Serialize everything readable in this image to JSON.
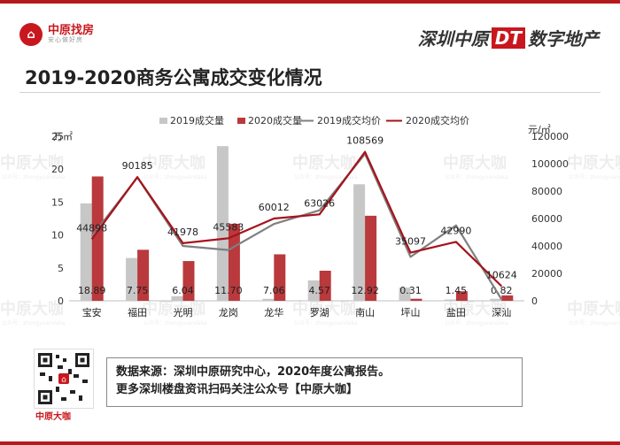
{
  "header": {
    "logo_icon": "house-logo-icon",
    "logo_name": "中原找房",
    "logo_slogan": "安心做好房",
    "brand_prefix": "深圳中原",
    "brand_dt": "DT",
    "brand_suffix": "数字地产"
  },
  "watermark": {
    "text": "中原大咖",
    "sub": "公众号：zhongyuandaka"
  },
  "colors": {
    "accent": "#c8171e",
    "bar2019": "#c7c7c7",
    "bar2020": "#b9393c",
    "line2019": "#7f7f7f",
    "line2020": "#a6121b"
  },
  "chart_data": {
    "type": "bar",
    "title": "2019-2020商务公寓成交变化情况",
    "categories": [
      "宝安",
      "福田",
      "光明",
      "龙岗",
      "龙华",
      "罗湖",
      "南山",
      "坪山",
      "盐田",
      "深汕"
    ],
    "ylabel_left": "万㎡",
    "ylabel_right": "元/㎡",
    "ylim_left": [
      0,
      25
    ],
    "ylim_right": [
      0,
      120000
    ],
    "yticks_left": [
      "0",
      "5",
      "10",
      "15",
      "20",
      "25"
    ],
    "yticks_right": [
      "0",
      "20000",
      "40000",
      "60000",
      "80000",
      "100000",
      "120000"
    ],
    "legend": [
      "2019成交量",
      "2020成交量",
      "2019成交均价",
      "2020成交均价"
    ],
    "legend_position": "top",
    "series": [
      {
        "name": "2019成交量",
        "type": "bar",
        "axis": "left",
        "values": [
          14.8,
          6.5,
          0.7,
          23.5,
          0.3,
          3.1,
          17.7,
          2.0,
          0.2,
          0.3
        ]
      },
      {
        "name": "2020成交量",
        "type": "bar",
        "axis": "left",
        "values": [
          18.89,
          7.75,
          6.04,
          11.7,
          7.06,
          4.57,
          12.92,
          0.31,
          1.45,
          0.82
        ]
      },
      {
        "name": "2019成交均价",
        "type": "line",
        "axis": "right",
        "values": [
          47000,
          90000,
          40000,
          37000,
          56000,
          66000,
          107000,
          32000,
          55000,
          1000
        ]
      },
      {
        "name": "2020成交均价",
        "type": "line",
        "axis": "right",
        "values": [
          44898,
          90185,
          41978,
          45583,
          60012,
          63026,
          108569,
          35097,
          42990,
          10624
        ]
      }
    ],
    "bar_labels_2020": [
      "18.89",
      "7.75",
      "6.04",
      "11.70",
      "7.06",
      "4.57",
      "12.92",
      "0.31",
      "1.45",
      "0.82"
    ],
    "line_labels_2020": [
      "44898",
      "90185",
      "41978",
      "45583",
      "60012",
      "63026",
      "108569",
      "35097",
      "42990",
      "10624"
    ],
    "grid": false
  },
  "footer": {
    "qr_icon": "qr-code-icon",
    "qr_caption": "中原大咖",
    "line1": "数据来源：深圳中原研究中心，2020年度公寓报告。",
    "line2": "更多深圳楼盘资讯扫码关注公众号【中原大咖】"
  }
}
